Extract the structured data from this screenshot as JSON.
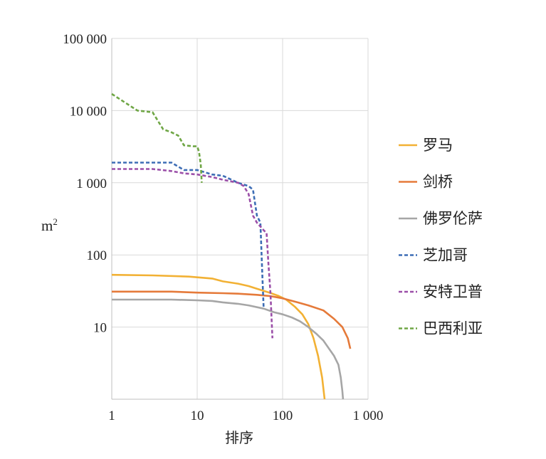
{
  "chart_data": {
    "type": "line",
    "title": "",
    "xlabel": "排序",
    "ylabel": "m",
    "ylabel_sup": "2",
    "x_scale": "log",
    "y_scale": "log",
    "xlim": [
      1,
      1000
    ],
    "ylim": [
      1,
      100000
    ],
    "x_ticks": [
      1,
      10,
      100,
      1000
    ],
    "x_tick_labels": [
      "1",
      "10",
      "100",
      "1 000"
    ],
    "y_ticks": [
      10,
      100,
      1000,
      10000,
      100000
    ],
    "y_tick_labels": [
      "10",
      "100",
      "1 000",
      "10 000",
      "100 000"
    ],
    "grid": true,
    "legend_position": "right",
    "series": [
      {
        "name": "罗马",
        "color": "#F2B134",
        "dash": "solid",
        "points": [
          [
            1,
            53
          ],
          [
            3,
            52
          ],
          [
            8,
            50
          ],
          [
            15,
            47
          ],
          [
            20,
            43
          ],
          [
            30,
            40
          ],
          [
            40,
            37
          ],
          [
            50,
            34
          ],
          [
            70,
            30
          ],
          [
            90,
            27
          ],
          [
            110,
            24
          ],
          [
            140,
            19
          ],
          [
            170,
            15
          ],
          [
            200,
            11
          ],
          [
            230,
            7
          ],
          [
            260,
            4
          ],
          [
            290,
            2
          ],
          [
            310,
            1
          ]
        ]
      },
      {
        "name": "剑桥",
        "color": "#E57A3A",
        "dash": "solid",
        "points": [
          [
            1,
            31
          ],
          [
            5,
            31
          ],
          [
            10,
            30
          ],
          [
            20,
            29.5
          ],
          [
            30,
            29
          ],
          [
            50,
            28
          ],
          [
            70,
            27
          ],
          [
            100,
            25
          ],
          [
            150,
            22
          ],
          [
            200,
            20
          ],
          [
            300,
            17
          ],
          [
            400,
            13
          ],
          [
            500,
            10
          ],
          [
            580,
            7
          ],
          [
            620,
            5
          ]
        ]
      },
      {
        "name": "佛罗伦萨",
        "color": "#A6A6A6",
        "dash": "solid",
        "points": [
          [
            1,
            24
          ],
          [
            5,
            24
          ],
          [
            10,
            23.5
          ],
          [
            15,
            23
          ],
          [
            20,
            22
          ],
          [
            30,
            21
          ],
          [
            40,
            20
          ],
          [
            60,
            18
          ],
          [
            80,
            16
          ],
          [
            100,
            15
          ],
          [
            130,
            13.5
          ],
          [
            160,
            12
          ],
          [
            200,
            10
          ],
          [
            250,
            8
          ],
          [
            300,
            6.5
          ],
          [
            350,
            5
          ],
          [
            400,
            4
          ],
          [
            450,
            3
          ],
          [
            480,
            2
          ],
          [
            500,
            1.3
          ],
          [
            510,
            1
          ]
        ]
      },
      {
        "name": "芝加哥",
        "color": "#3D6DB5",
        "dash": "dashed",
        "points": [
          [
            1,
            1900
          ],
          [
            5,
            1900
          ],
          [
            7,
            1500
          ],
          [
            10,
            1500
          ],
          [
            15,
            1300
          ],
          [
            20,
            1250
          ],
          [
            30,
            1000
          ],
          [
            40,
            900
          ],
          [
            45,
            800
          ],
          [
            50,
            350
          ],
          [
            55,
            280
          ],
          [
            58,
            50
          ],
          [
            60,
            18
          ]
        ]
      },
      {
        "name": "安特卫普",
        "color": "#9B4FA8",
        "dash": "dashed",
        "points": [
          [
            1,
            1550
          ],
          [
            3,
            1550
          ],
          [
            5,
            1450
          ],
          [
            7,
            1350
          ],
          [
            10,
            1300
          ],
          [
            15,
            1200
          ],
          [
            20,
            1100
          ],
          [
            30,
            1000
          ],
          [
            35,
            900
          ],
          [
            40,
            700
          ],
          [
            45,
            350
          ],
          [
            50,
            280
          ],
          [
            60,
            220
          ],
          [
            65,
            200
          ],
          [
            68,
            80
          ],
          [
            72,
            30
          ],
          [
            76,
            7
          ]
        ]
      },
      {
        "name": "巴西利亚",
        "color": "#6FA645",
        "dash": "dashed",
        "points": [
          [
            1,
            17000
          ],
          [
            2,
            10000
          ],
          [
            3,
            9500
          ],
          [
            4,
            5500
          ],
          [
            5,
            5000
          ],
          [
            6,
            4500
          ],
          [
            7,
            3300
          ],
          [
            9,
            3200
          ],
          [
            10,
            3200
          ],
          [
            10.5,
            2700
          ],
          [
            11,
            1800
          ],
          [
            11.3,
            1000
          ]
        ]
      }
    ]
  }
}
